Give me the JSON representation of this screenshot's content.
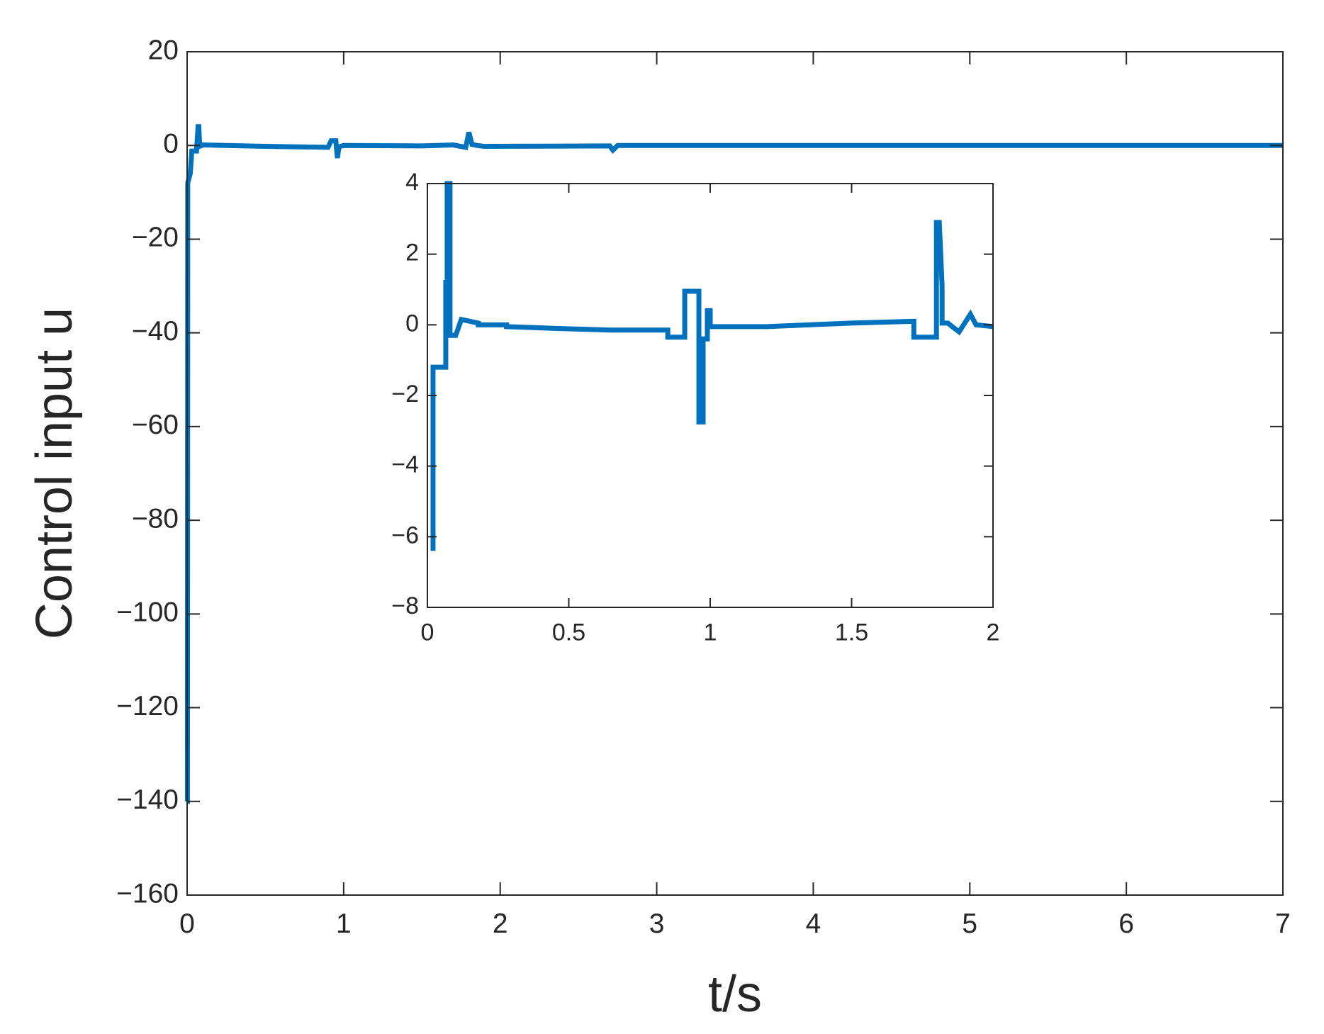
{
  "chart_data": [
    {
      "type": "line",
      "xlabel": "t/s",
      "ylabel": "Control input u",
      "xlim": [
        0,
        7
      ],
      "ylim": [
        -160,
        20
      ],
      "xticks": [
        0,
        1,
        2,
        3,
        4,
        5,
        6,
        7
      ],
      "yticks": [
        20,
        0,
        {
          "value": -20,
          "label": "−20"
        },
        {
          "value": -40,
          "label": "−40"
        },
        {
          "value": -60,
          "label": "−60"
        },
        {
          "value": -80,
          "label": "−80"
        },
        {
          "value": -100,
          "label": "−100"
        },
        {
          "value": -120,
          "label": "−120"
        },
        {
          "value": -140,
          "label": "−140"
        },
        {
          "value": -160,
          "label": "−160"
        }
      ],
      "series": [
        {
          "color": "#0072bd",
          "x": [
            0,
            0.002,
            0.004,
            0.02,
            0.03,
            0.06,
            0.07,
            0.075,
            0.08,
            0.1,
            0.5,
            0.9,
            0.92,
            0.95,
            0.96,
            0.97,
            1.0,
            1.5,
            1.7,
            1.78,
            1.8,
            1.82,
            1.85,
            1.9,
            2.7,
            2.72,
            2.75,
            3.6,
            4,
            5,
            6,
            7
          ],
          "values": [
            -140,
            -140,
            -8,
            -6,
            -1.2,
            -1.2,
            4,
            4,
            -0.2,
            0.1,
            -0.2,
            -0.4,
            1,
            1,
            -2.7,
            -0.3,
            0,
            -0.1,
            0.1,
            -0.4,
            2.8,
            0.2,
            0,
            -0.2,
            -0.1,
            -1,
            0,
            0,
            0,
            0,
            0,
            0
          ]
        }
      ]
    },
    {
      "type": "line",
      "xlim": [
        0,
        2
      ],
      "ylim": [
        -8,
        4
      ],
      "xticks": [
        0,
        0.5,
        1,
        1.5,
        2
      ],
      "yticks": [
        4,
        2,
        0,
        {
          "value": -2,
          "label": "−2"
        },
        {
          "value": -4,
          "label": "−4"
        },
        {
          "value": -6,
          "label": "−6"
        },
        {
          "value": -8,
          "label": "−8"
        }
      ],
      "series": [
        {
          "color": "#0072bd",
          "x": [
            0.02,
            0.02,
            0.03,
            0.03,
            0.065,
            0.065,
            0.07,
            0.07,
            0.075,
            0.08,
            0.08,
            0.1,
            0.12,
            0.12,
            0.18,
            0.18,
            0.28,
            0.28,
            0.45,
            0.65,
            0.85,
            0.85,
            0.91,
            0.91,
            0.96,
            0.96,
            0.975,
            0.975,
            0.99,
            0.99,
            1.0,
            1.0,
            1.2,
            1.5,
            1.72,
            1.72,
            1.8,
            1.8,
            1.81,
            1.82,
            1.82,
            1.84,
            1.84,
            1.88,
            1.88,
            1.92,
            1.92,
            1.94,
            1.94,
            2.0
          ],
          "values": [
            -6.4,
            -1.2,
            -1.2,
            -1.2,
            -1.2,
            1.2,
            1.2,
            4,
            4,
            4,
            -0.3,
            -0.3,
            0.15,
            0.15,
            0.05,
            0,
            0,
            -0.05,
            -0.1,
            -0.15,
            -0.15,
            -0.35,
            -0.35,
            0.95,
            0.95,
            -2.75,
            -2.75,
            -0.4,
            -0.4,
            0.4,
            0.4,
            -0.05,
            -0.05,
            0.05,
            0.1,
            -0.35,
            -0.35,
            2.9,
            2.9,
            1.1,
            0.05,
            0.05,
            0.05,
            -0.2,
            -0.2,
            0.3,
            0.3,
            0,
            0,
            -0.05
          ]
        }
      ]
    }
  ]
}
